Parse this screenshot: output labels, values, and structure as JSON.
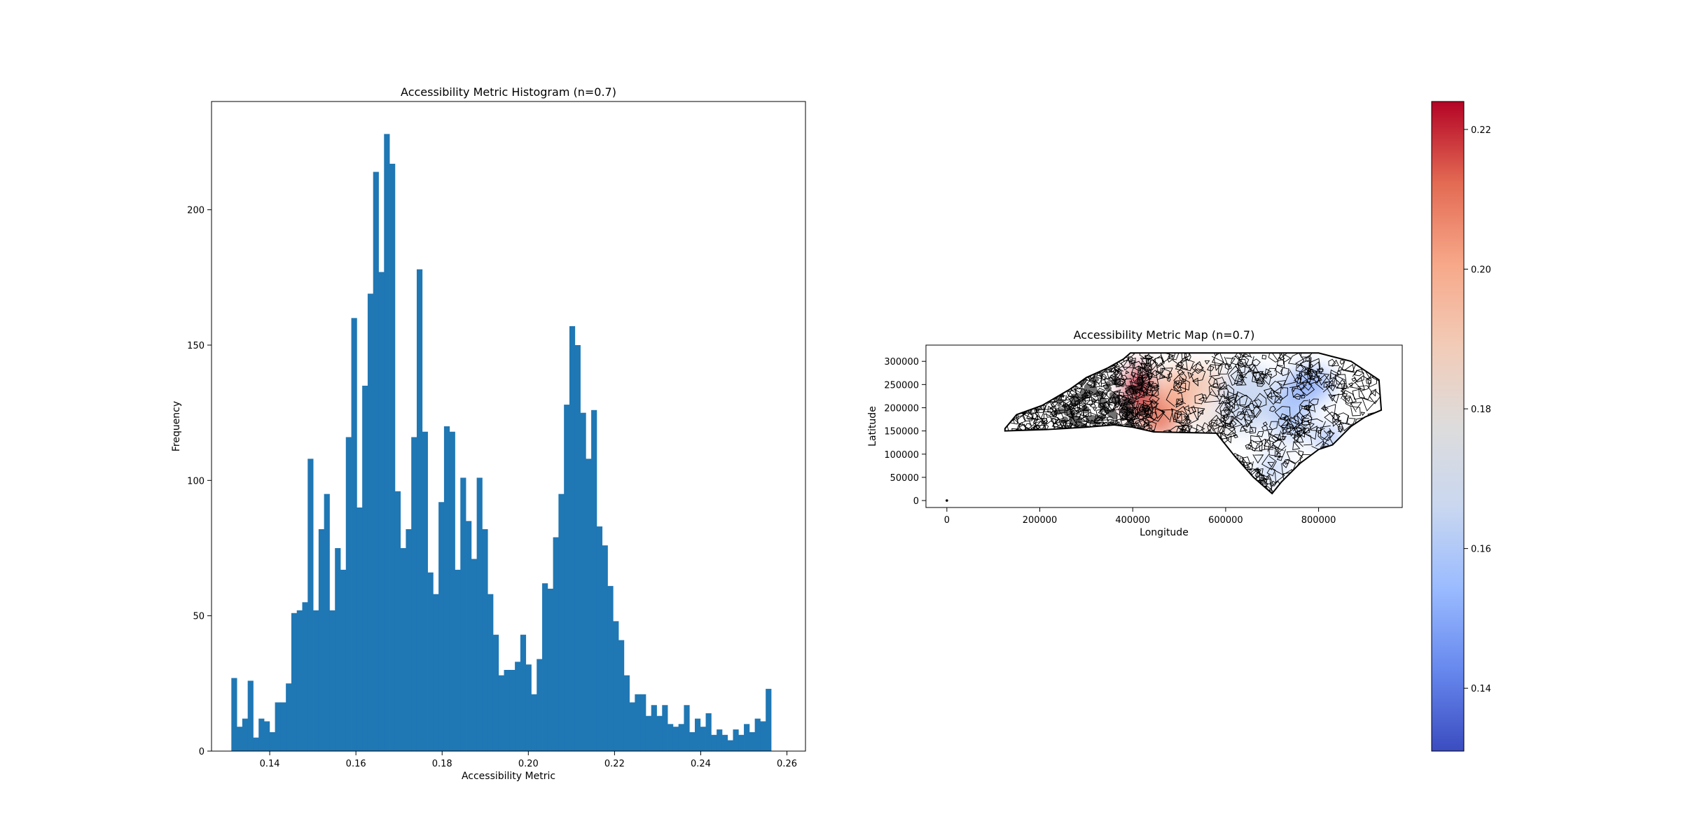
{
  "chart_data": [
    {
      "type": "bar",
      "title": "Accessibility Metric Histogram (n=0.7)",
      "xlabel": "Accessibility Metric",
      "ylabel": "Frequency",
      "xlim": [
        0.1265,
        0.2643
      ],
      "ylim": [
        0,
        240
      ],
      "xticks": [
        0.14,
        0.16,
        0.18,
        0.2,
        0.22,
        0.24,
        0.26
      ],
      "xtick_labels": [
        "0.14",
        "0.16",
        "0.18",
        "0.20",
        "0.22",
        "0.24",
        "0.26"
      ],
      "yticks": [
        0,
        50,
        100,
        150,
        200
      ],
      "ytick_labels": [
        "0",
        "50",
        "100",
        "150",
        "200"
      ],
      "bar_color": "#1f77b4",
      "bin_start": 0.1311,
      "bin_width": 0.001265,
      "values": [
        27,
        9,
        12,
        26,
        5,
        12,
        11,
        7,
        18,
        18,
        25,
        51,
        52,
        55,
        108,
        52,
        82,
        95,
        52,
        75,
        67,
        116,
        160,
        90,
        135,
        169,
        214,
        177,
        228,
        217,
        96,
        75,
        82,
        116,
        178,
        118,
        66,
        58,
        92,
        120,
        118,
        67,
        101,
        85,
        71,
        101,
        82,
        58,
        43,
        28,
        30,
        30,
        33,
        43,
        32,
        21,
        34,
        62,
        60,
        79,
        95,
        128,
        157,
        150,
        125,
        108,
        126,
        83,
        76,
        61,
        48,
        41,
        28,
        18,
        21,
        21,
        13,
        17,
        13,
        17,
        10,
        9,
        10,
        17,
        7,
        12,
        9,
        14,
        6,
        8,
        6,
        4,
        8,
        6,
        10,
        7,
        12,
        11,
        23
      ]
    },
    {
      "type": "map",
      "title": "Accessibility Metric Map (n=0.7)",
      "xlabel": "Longitude",
      "ylabel": "Latitude",
      "xlim": [
        -45000,
        980000
      ],
      "ylim": [
        -15000,
        335000
      ],
      "xticks": [
        0,
        200000,
        400000,
        600000,
        800000
      ],
      "xtick_labels": [
        "0",
        "200000",
        "400000",
        "600000",
        "800000"
      ],
      "yticks": [
        0,
        50000,
        100000,
        150000,
        200000,
        250000,
        300000
      ],
      "ytick_labels": [
        "0",
        "50000",
        "100000",
        "150000",
        "200000",
        "250000",
        "300000"
      ],
      "colorbar": {
        "cmap": "coolwarm",
        "range": [
          0.131,
          0.224
        ],
        "ticks": [
          0.14,
          0.16,
          0.18,
          0.2,
          0.22
        ],
        "tick_labels": [
          "0.14",
          "0.16",
          "0.18",
          "0.20",
          "0.22"
        ],
        "colors": [
          "#3b4cc0",
          "#6788ee",
          "#9abbff",
          "#c9d7f0",
          "#dddcdc",
          "#f2cbb7",
          "#f7a889",
          "#e36a53",
          "#b40426"
        ]
      },
      "outline": [
        [
          125000,
          155000
        ],
        [
          150000,
          185000
        ],
        [
          205000,
          205000
        ],
        [
          265000,
          240000
        ],
        [
          300000,
          265000
        ],
        [
          345000,
          285000
        ],
        [
          380000,
          305000
        ],
        [
          395000,
          318000
        ],
        [
          800000,
          318000
        ],
        [
          870000,
          300000
        ],
        [
          930000,
          260000
        ],
        [
          935000,
          195000
        ],
        [
          900000,
          180000
        ],
        [
          870000,
          160000
        ],
        [
          830000,
          120000
        ],
        [
          800000,
          110000
        ],
        [
          760000,
          80000
        ],
        [
          720000,
          40000
        ],
        [
          700000,
          15000
        ],
        [
          660000,
          50000
        ],
        [
          620000,
          95000
        ],
        [
          580000,
          145000
        ],
        [
          445000,
          148000
        ],
        [
          400000,
          158000
        ],
        [
          360000,
          163000
        ],
        [
          300000,
          158000
        ],
        [
          215000,
          153000
        ],
        [
          125000,
          150000
        ]
      ],
      "color_blobs": [
        {
          "x": 415000,
          "y": 235000,
          "rx": 30000,
          "ry": 55000,
          "v": 0.222
        },
        {
          "x": 460000,
          "y": 180000,
          "rx": 40000,
          "ry": 45000,
          "v": 0.212
        },
        {
          "x": 500000,
          "y": 230000,
          "rx": 40000,
          "ry": 55000,
          "v": 0.2
        },
        {
          "x": 550000,
          "y": 250000,
          "rx": 40000,
          "ry": 40000,
          "v": 0.19
        },
        {
          "x": 570000,
          "y": 165000,
          "rx": 30000,
          "ry": 30000,
          "v": 0.182
        },
        {
          "x": 650000,
          "y": 220000,
          "rx": 60000,
          "ry": 70000,
          "v": 0.165
        },
        {
          "x": 740000,
          "y": 190000,
          "rx": 40000,
          "ry": 60000,
          "v": 0.158
        },
        {
          "x": 780000,
          "y": 250000,
          "rx": 50000,
          "ry": 35000,
          "v": 0.15
        },
        {
          "x": 700000,
          "y": 70000,
          "rx": 25000,
          "ry": 30000,
          "v": 0.16
        },
        {
          "x": 820000,
          "y": 135000,
          "rx": 30000,
          "ry": 20000,
          "v": 0.15
        }
      ],
      "outlier_point": [
        0,
        0
      ]
    }
  ]
}
